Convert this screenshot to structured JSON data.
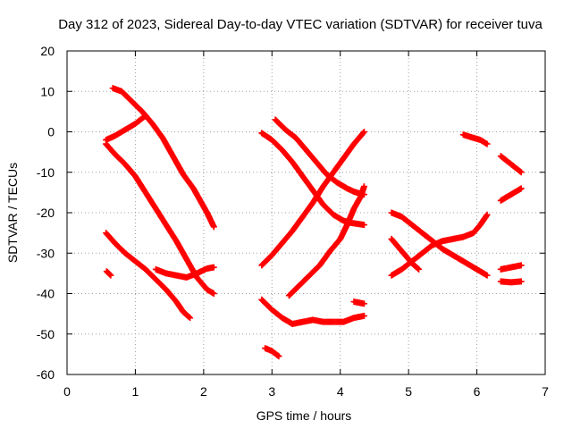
{
  "chart_data": {
    "type": "scatter",
    "title": "Day 312 of 2023, Sidereal Day-to-day VTEC variation (SDTVAR) for receiver tuva",
    "xlabel": "GPS time / hours",
    "ylabel": "SDTVAR / TECUs",
    "xlim": [
      0,
      7
    ],
    "ylim": [
      -60,
      20
    ],
    "xticks": [
      "0",
      "1",
      "2",
      "3",
      "4",
      "5",
      "6",
      "7"
    ],
    "yticks": [
      "-60",
      "-50",
      "-40",
      "-30",
      "-20",
      "-10",
      "0",
      "10",
      "20"
    ],
    "grid": true,
    "marker": "plus",
    "color": "#ff0000",
    "series": [
      {
        "points": [
          [
            0.67,
            10.8
          ],
          [
            0.8,
            10.0
          ],
          [
            0.95,
            7.5
          ],
          [
            1.1,
            5.0
          ],
          [
            1.25,
            2.0
          ],
          [
            1.4,
            -1.5
          ],
          [
            1.55,
            -6.0
          ],
          [
            1.7,
            -10.5
          ],
          [
            1.85,
            -14.0
          ],
          [
            1.95,
            -17.0
          ],
          [
            2.05,
            -20.0
          ],
          [
            2.15,
            -23.5
          ]
        ]
      },
      {
        "points": [
          [
            0.57,
            -2.0
          ],
          [
            0.7,
            -1.0
          ],
          [
            0.85,
            0.5
          ],
          [
            1.0,
            2.0
          ],
          [
            1.15,
            4.0
          ]
        ]
      },
      {
        "points": [
          [
            0.57,
            -3.0
          ],
          [
            0.7,
            -5.5
          ],
          [
            0.85,
            -8.0
          ],
          [
            1.0,
            -11.0
          ],
          [
            1.15,
            -15.0
          ],
          [
            1.3,
            -19.0
          ],
          [
            1.45,
            -23.0
          ],
          [
            1.6,
            -27.0
          ],
          [
            1.75,
            -31.5
          ],
          [
            1.9,
            -36.0
          ],
          [
            2.05,
            -39.0
          ],
          [
            2.15,
            -40.0
          ]
        ]
      },
      {
        "points": [
          [
            0.57,
            -25.0
          ],
          [
            0.7,
            -27.5
          ],
          [
            0.85,
            -30.0
          ],
          [
            1.0,
            -32.0
          ],
          [
            1.15,
            -34.0
          ],
          [
            1.3,
            -36.5
          ],
          [
            1.45,
            -39.0
          ],
          [
            1.6,
            -42.0
          ],
          [
            1.7,
            -44.5
          ],
          [
            1.8,
            -46.0
          ]
        ]
      },
      {
        "points": [
          [
            0.58,
            -34.5
          ],
          [
            0.64,
            -35.5
          ]
        ]
      },
      {
        "points": [
          [
            1.3,
            -34.0
          ],
          [
            1.45,
            -35.0
          ],
          [
            1.6,
            -35.5
          ],
          [
            1.75,
            -36.0
          ],
          [
            1.9,
            -35.0
          ],
          [
            2.05,
            -33.8
          ],
          [
            2.15,
            -33.5
          ]
        ]
      },
      {
        "points": [
          [
            2.85,
            -0.3
          ],
          [
            3.0,
            -2.0
          ],
          [
            3.15,
            -4.5
          ],
          [
            3.3,
            -7.5
          ],
          [
            3.45,
            -11.0
          ],
          [
            3.6,
            -14.5
          ],
          [
            3.75,
            -18.0
          ],
          [
            3.9,
            -20.5
          ],
          [
            4.05,
            -22.0
          ],
          [
            4.15,
            -22.5
          ],
          [
            4.35,
            -23.0
          ]
        ]
      },
      {
        "points": [
          [
            3.05,
            3.0
          ],
          [
            3.2,
            0.5
          ],
          [
            3.35,
            -1.5
          ],
          [
            3.5,
            -4.5
          ],
          [
            3.65,
            -7.5
          ],
          [
            3.8,
            -10.5
          ],
          [
            3.95,
            -12.5
          ],
          [
            4.1,
            -14.0
          ],
          [
            4.2,
            -14.8
          ],
          [
            4.3,
            -15.3
          ],
          [
            4.35,
            -15.5
          ]
        ]
      },
      {
        "points": [
          [
            2.85,
            -33.0
          ],
          [
            3.0,
            -30.5
          ],
          [
            3.15,
            -27.5
          ],
          [
            3.3,
            -24.5
          ],
          [
            3.45,
            -21.0
          ],
          [
            3.6,
            -17.5
          ],
          [
            3.75,
            -13.5
          ],
          [
            3.9,
            -10.0
          ],
          [
            4.05,
            -6.5
          ],
          [
            4.2,
            -3.0
          ],
          [
            4.3,
            -1.0
          ],
          [
            4.35,
            0.0
          ]
        ]
      },
      {
        "points": [
          [
            3.25,
            -40.5
          ],
          [
            3.4,
            -38.0
          ],
          [
            3.55,
            -35.5
          ],
          [
            3.7,
            -33.0
          ],
          [
            3.85,
            -29.5
          ],
          [
            4.0,
            -26.5
          ],
          [
            4.1,
            -23.0
          ],
          [
            4.2,
            -19.0
          ],
          [
            4.3,
            -16.0
          ],
          [
            4.35,
            -13.5
          ]
        ]
      },
      {
        "points": [
          [
            2.85,
            -41.5
          ],
          [
            3.0,
            -44.0
          ],
          [
            3.15,
            -46.0
          ],
          [
            3.3,
            -47.5
          ],
          [
            3.45,
            -47.0
          ],
          [
            3.6,
            -46.5
          ],
          [
            3.75,
            -47.0
          ],
          [
            3.9,
            -47.0
          ],
          [
            4.05,
            -47.0
          ],
          [
            4.2,
            -46.0
          ],
          [
            4.35,
            -45.5
          ]
        ]
      },
      {
        "points": [
          [
            2.9,
            -53.5
          ],
          [
            3.0,
            -54.2
          ],
          [
            3.1,
            -55.5
          ]
        ]
      },
      {
        "points": [
          [
            4.2,
            -42.0
          ],
          [
            4.35,
            -42.5
          ]
        ]
      },
      {
        "points": [
          [
            4.75,
            -20.0
          ],
          [
            4.9,
            -21.0
          ],
          [
            5.05,
            -23.0
          ],
          [
            5.2,
            -25.0
          ],
          [
            5.35,
            -27.0
          ],
          [
            5.5,
            -29.0
          ],
          [
            5.65,
            -30.5
          ],
          [
            5.8,
            -32.0
          ],
          [
            5.95,
            -33.5
          ],
          [
            6.1,
            -35.0
          ],
          [
            6.15,
            -35.5
          ]
        ]
      },
      {
        "points": [
          [
            4.75,
            -26.5
          ],
          [
            4.9,
            -29.5
          ],
          [
            5.05,
            -32.5
          ],
          [
            5.15,
            -34.0
          ]
        ]
      },
      {
        "points": [
          [
            4.75,
            -35.5
          ],
          [
            4.9,
            -34.0
          ],
          [
            5.05,
            -32.0
          ],
          [
            5.2,
            -30.0
          ],
          [
            5.35,
            -28.0
          ],
          [
            5.5,
            -27.0
          ],
          [
            5.65,
            -26.5
          ],
          [
            5.8,
            -26.0
          ],
          [
            5.95,
            -25.0
          ],
          [
            6.05,
            -23.0
          ],
          [
            6.15,
            -20.5
          ]
        ]
      },
      {
        "points": [
          [
            5.8,
            -0.7
          ],
          [
            5.95,
            -1.5
          ],
          [
            6.05,
            -2.0
          ],
          [
            6.15,
            -3.0
          ]
        ]
      },
      {
        "points": [
          [
            6.35,
            -6.0
          ],
          [
            6.5,
            -8.0
          ],
          [
            6.65,
            -10.0
          ]
        ]
      },
      {
        "points": [
          [
            6.35,
            -17.0
          ],
          [
            6.5,
            -15.5
          ],
          [
            6.65,
            -14.0
          ]
        ]
      },
      {
        "points": [
          [
            6.35,
            -34.0
          ],
          [
            6.5,
            -33.5
          ],
          [
            6.65,
            -33.0
          ]
        ]
      },
      {
        "points": [
          [
            6.35,
            -37.0
          ],
          [
            6.5,
            -37.2
          ],
          [
            6.65,
            -37.0
          ]
        ]
      }
    ]
  }
}
